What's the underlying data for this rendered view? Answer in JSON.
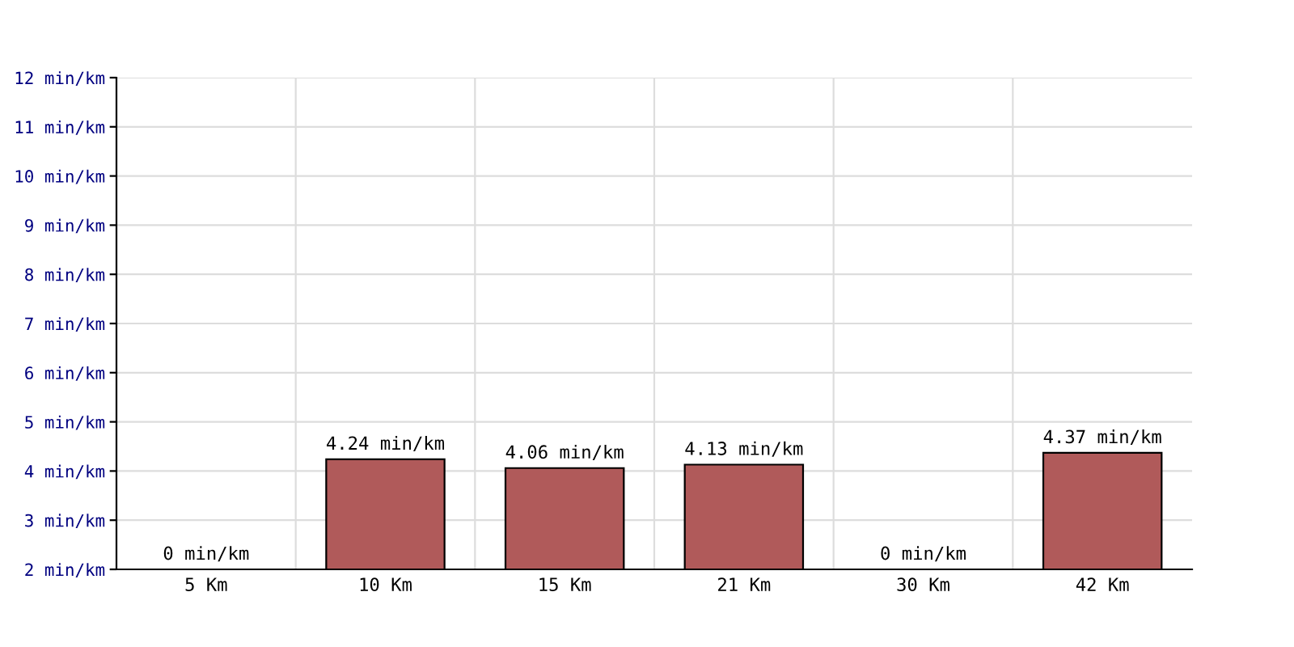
{
  "chart_data": {
    "type": "bar",
    "categories": [
      "5 Km",
      "10 Km",
      "15 Km",
      "21 Km",
      "30 Km",
      "42 Km"
    ],
    "values": [
      null,
      4.24,
      4.06,
      4.13,
      null,
      4.37
    ],
    "value_labels": [
      "0 min/km",
      "4.24 min/km",
      "4.06 min/km",
      "4.13 min/km",
      "0 min/km",
      "4.37 min/km"
    ],
    "color": "#b05a5a",
    "ylim": [
      2,
      12
    ],
    "yticks": [
      {
        "value": 2,
        "label": "2 min/km"
      },
      {
        "value": 3,
        "label": "3 min/km"
      },
      {
        "value": 4,
        "label": "4 min/km"
      },
      {
        "value": 5,
        "label": "5 min/km"
      },
      {
        "value": 6,
        "label": "6 min/km"
      },
      {
        "value": 7,
        "label": "7 min/km"
      },
      {
        "value": 8,
        "label": "8 min/km"
      },
      {
        "value": 9,
        "label": "9 min/km"
      },
      {
        "value": 10,
        "label": "10 min/km"
      },
      {
        "value": 11,
        "label": "11 min/km"
      },
      {
        "value": 12,
        "label": "12 min/km"
      }
    ],
    "grid": true
  }
}
